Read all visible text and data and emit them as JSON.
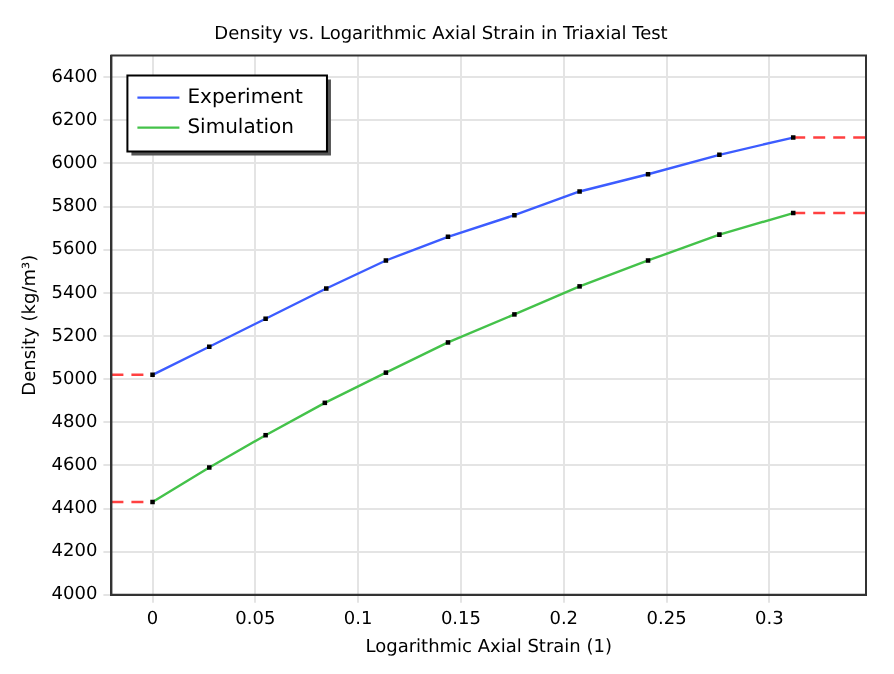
{
  "chart_data": {
    "type": "line",
    "title": "Density vs. Logarithmic Axial Strain in Triaxial Test",
    "xlabel": "Logarithmic Axial Strain (1)",
    "ylabel": "Density (kg/m³)",
    "xlim": [
      -0.02,
      0.347
    ],
    "xticks": [
      0,
      0.05,
      0.1,
      0.15,
      0.2,
      0.25,
      0.3
    ],
    "ylim": [
      4000,
      6500
    ],
    "yticks": [
      4000,
      4200,
      4400,
      4600,
      4800,
      5000,
      5200,
      5400,
      5600,
      5800,
      6000,
      6200,
      6400
    ],
    "grid": true,
    "legend": "top left",
    "marker": "square",
    "line_style": "solid",
    "series": [
      {
        "name": "Experiment",
        "color": "#3c5cff",
        "x": [
          0,
          0.0276,
          0.055,
          0.0845,
          0.1135,
          0.1437,
          0.176,
          0.2077,
          0.241,
          0.2757,
          0.3116
        ],
        "values": [
          5020,
          5150,
          5280,
          5420,
          5550,
          5660,
          5760,
          5870,
          5950,
          6040,
          6120
        ]
      },
      {
        "name": "Simulation",
        "color": "#44c24a",
        "x": [
          0,
          0.0276,
          0.055,
          0.0838,
          0.1135,
          0.1437,
          0.176,
          0.2077,
          0.241,
          0.2757,
          0.3116
        ],
        "values": [
          4430,
          4590,
          4740,
          4890,
          5030,
          5170,
          5300,
          5430,
          5550,
          5670,
          5770
        ]
      },
      {
        "color": "#ff4040",
        "line_style": "dashed",
        "marker": "none",
        "x": [
          -0.02,
          0
        ],
        "values": [
          5020,
          5020
        ]
      },
      {
        "color": "#ff4040",
        "line_style": "dashed",
        "marker": "none",
        "x": [
          -0.02,
          0
        ],
        "values": [
          4430,
          4430
        ]
      },
      {
        "color": "#ff4040",
        "line_style": "dashed",
        "marker": "none",
        "x": [
          0.3116,
          0.347
        ],
        "values": [
          6120,
          6120
        ]
      },
      {
        "color": "#ff4040",
        "line_style": "dashed",
        "marker": "none",
        "x": [
          0.3116,
          0.347
        ],
        "values": [
          5770,
          5770
        ]
      }
    ]
  }
}
